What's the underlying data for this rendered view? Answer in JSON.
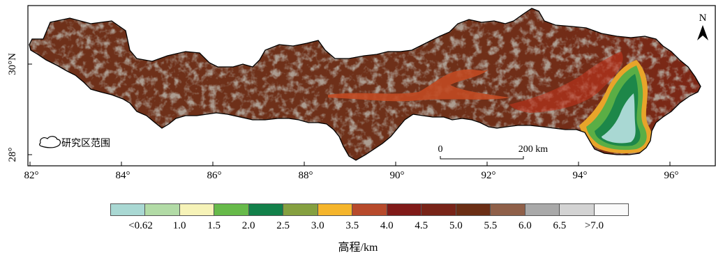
{
  "map": {
    "x_ticks": [
      "82°",
      "84°",
      "86°",
      "88°",
      "90°",
      "92°",
      "94°",
      "96°"
    ],
    "y_ticks": [
      "30°N",
      "28°"
    ],
    "north_label": "N",
    "scale_bar": {
      "start": "0",
      "end": "200 km"
    },
    "legend_label": "研究区范围"
  },
  "colorbar": {
    "title": "高程/km",
    "colors": [
      "#a9d8d3",
      "#b2dba6",
      "#f6f3b8",
      "#67ba4a",
      "#12804a",
      "#85a040",
      "#f5b52b",
      "#b74a2b",
      "#801a18",
      "#782418",
      "#6b2e15",
      "#8f6049",
      "#a9a9a9",
      "#d3d3d3",
      "#fafafa"
    ],
    "labels": [
      "<0.62",
      "1.0",
      "1.5",
      "2.0",
      "2.5",
      "3.0",
      "3.5",
      "4.0",
      "4.5",
      "5.0",
      "5.5",
      "6.0",
      "6.5",
      ">7.0"
    ]
  }
}
